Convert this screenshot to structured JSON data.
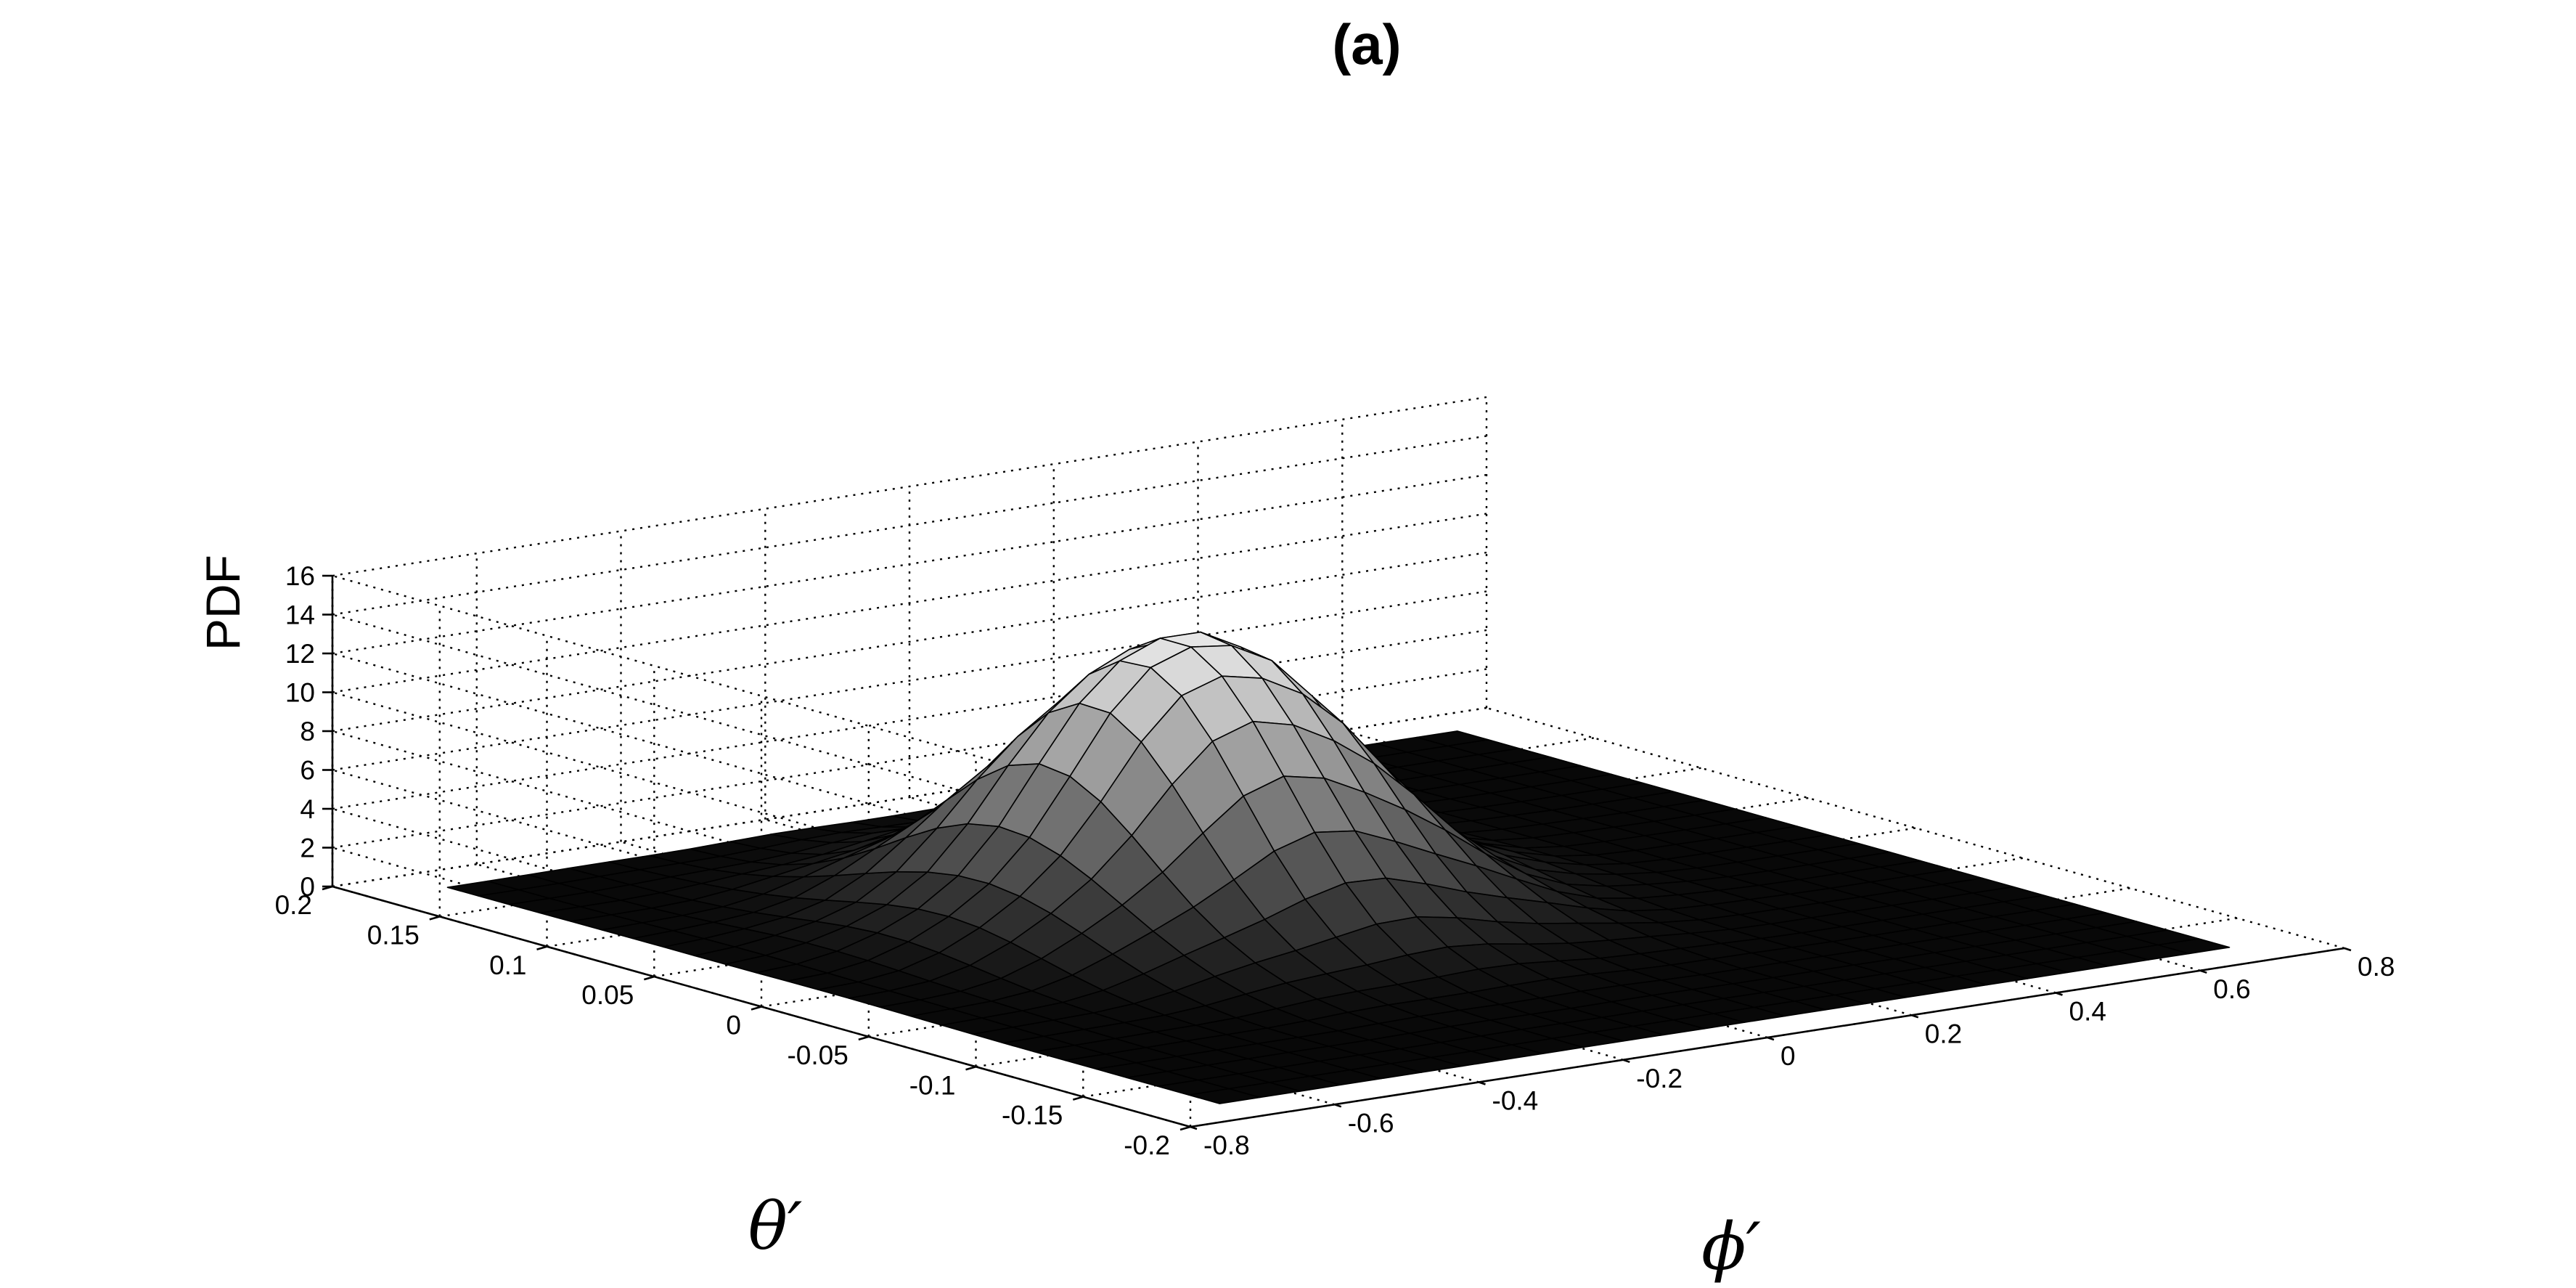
{
  "chart_data": {
    "type": "surface",
    "title": "(a)",
    "xlabel": "ϕ′",
    "ylabel": "θ′",
    "zlabel": "PDF",
    "xlim": [
      -0.8,
      0.8
    ],
    "ylim": [
      -0.2,
      0.2
    ],
    "zlim": [
      0,
      16
    ],
    "x_ticks": [
      "-0.8",
      "-0.6",
      "-0.4",
      "-0.2",
      "0",
      "0.2",
      "0.4",
      "0.6",
      "0.8"
    ],
    "y_ticks": [
      "-0.2",
      "-0.15",
      "-0.1",
      "-0.05",
      "0",
      "0.05",
      "0.1",
      "0.15",
      "0.2"
    ],
    "z_ticks": [
      "0",
      "2",
      "4",
      "6",
      "8",
      "10",
      "12",
      "14",
      "16"
    ],
    "grid": true,
    "colormap": "gray",
    "surface_extent": {
      "x": [
        -0.7,
        0.7
      ],
      "y": [
        -0.18,
        0.18
      ]
    },
    "grid_size": 25,
    "peak": {
      "x": -0.12,
      "y": 0.03,
      "pdf": 14.6
    },
    "spread": {
      "sigma_x": 0.18,
      "sigma_y": 0.05
    }
  }
}
